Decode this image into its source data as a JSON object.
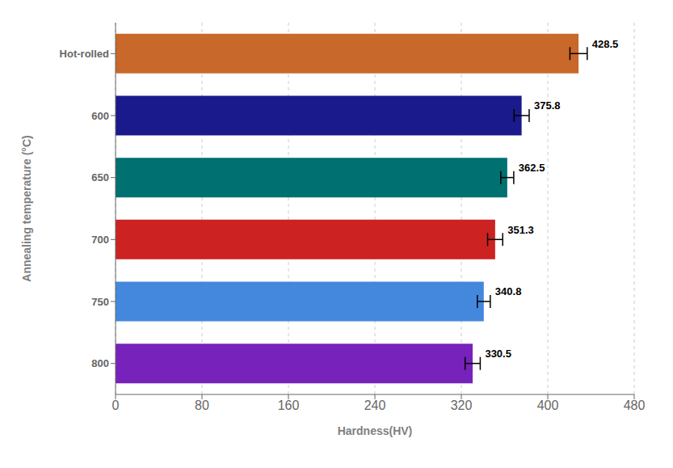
{
  "chart_data": {
    "type": "bar",
    "orientation": "horizontal",
    "categories": [
      "Hot-rolled",
      "600",
      "650",
      "700",
      "750",
      "800"
    ],
    "values": [
      428.5,
      375.8,
      362.5,
      351.3,
      340.8,
      330.5
    ],
    "errors": [
      8,
      7,
      6,
      7,
      6,
      7
    ],
    "colors": [
      "#C8682A",
      "#1A1A8C",
      "#007070",
      "#CC2222",
      "#4488DD",
      "#7722BB"
    ],
    "xlabel": "Hardness(HV)",
    "ylabel": "Annealing temperature (°C)",
    "xlim": [
      0,
      480
    ],
    "xticks": [
      0,
      80,
      160,
      240,
      320,
      400,
      480
    ],
    "grid": true,
    "data_labels": true
  }
}
